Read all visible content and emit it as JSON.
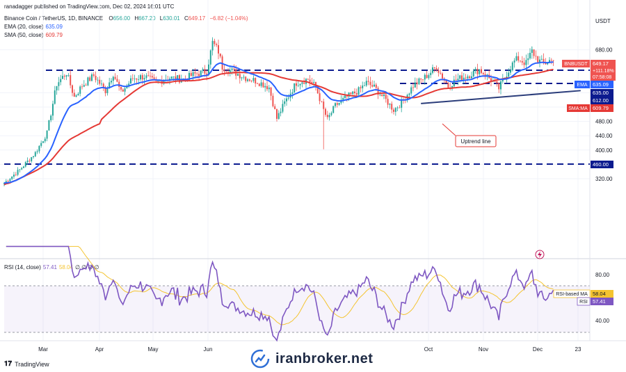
{
  "header": {
    "author_line": "ranadagger published on TradingView.com, Dec 02, 2024 16:01 UTC",
    "symbol": "Binance Coin / TetherUS, 1D, BINANCE",
    "o_label": "O",
    "o_value": "656.00",
    "h_label": "H",
    "h_value": "667.20",
    "l_label": "L",
    "l_value": "630.01",
    "c_label": "C",
    "c_value": "649.17",
    "change": "−6.82 (−1.04%)",
    "ema_legend": "EMA (20, close)",
    "ema_value": "635.09",
    "sma_legend": "SMA (50, close)",
    "sma_value": "609.79"
  },
  "currency": "USDT",
  "badges": {
    "symbol_tag": "BNBUSDT",
    "price": "649.17",
    "pct": "+111.18%",
    "countdown": "07:58:08",
    "ema_tag": "EMA",
    "ema_value": "635.09",
    "level_635": "635.00",
    "level_612": "612.00",
    "sma_tag": "SMA:MA",
    "sma_value": "609.79",
    "level_460": "460.00"
  },
  "annotation": "Uptrend line",
  "rsi": {
    "legend": "RSI (14, close)",
    "value": "57.41",
    "ma_value": "58.04",
    "zeros": "∅ ∅ ∅ ∅",
    "ma_tag": "RSI-based MA",
    "rsi_tag": "RSI",
    "ticks": [
      "80.00",
      "40.00"
    ]
  },
  "watermark": "iranbroker.net",
  "tv_logo": "TradingView",
  "colors": {
    "up": "#26a69a",
    "down": "#ef5350",
    "ema": "#2962ff",
    "sma": "#e53935",
    "rsi": "#7e57c2",
    "rsi_ma": "#f4c430",
    "trendline": "#2a3c7a",
    "level": "#0c1b8f"
  },
  "chart_data": [
    {
      "type": "candlestick",
      "yscale": "linear",
      "ylim": [
        295,
        705
      ],
      "yticks": [
        "680.00",
        "560.00",
        "520.00",
        "480.00",
        "440.00",
        "400.00",
        "360.00",
        "320.00"
      ],
      "xlabels": [
        "Mar",
        "Apr",
        "May",
        "Jun",
        "Oct",
        "Nov",
        "Dec",
        "23"
      ],
      "horizontal_levels": [
        635,
        612,
        460
      ],
      "series": [
        {
          "name": "EMA (20, close)",
          "last": 635.09
        },
        {
          "name": "SMA (50, close)",
          "last": 609.79
        }
      ],
      "waypoints": [
        [
          0,
          308
        ],
        [
          8,
          345
        ],
        [
          16,
          392
        ],
        [
          22,
          448
        ],
        [
          27,
          585
        ],
        [
          32,
          616
        ],
        [
          36,
          548
        ],
        [
          40,
          580
        ],
        [
          46,
          608
        ],
        [
          52,
          566
        ],
        [
          56,
          614
        ],
        [
          60,
          560
        ],
        [
          66,
          600
        ],
        [
          72,
          606
        ],
        [
          78,
          588
        ],
        [
          84,
          602
        ],
        [
          92,
          598
        ],
        [
          98,
          612
        ],
        [
          104,
          620
        ],
        [
          107,
          700
        ],
        [
          110,
          676
        ],
        [
          112,
          632
        ],
        [
          118,
          618
        ],
        [
          124,
          602
        ],
        [
          130,
          592
        ],
        [
          136,
          575
        ],
        [
          140,
          488
        ],
        [
          144,
          532
        ],
        [
          150,
          588
        ],
        [
          156,
          598
        ],
        [
          160,
          576
        ],
        [
          164,
          512
        ],
        [
          166,
          485
        ],
        [
          170,
          524
        ],
        [
          176,
          548
        ],
        [
          182,
          566
        ],
        [
          186,
          588
        ],
        [
          190,
          575
        ],
        [
          196,
          540
        ],
        [
          200,
          512
        ],
        [
          204,
          532
        ],
        [
          210,
          580
        ],
        [
          216,
          603
        ],
        [
          222,
          632
        ],
        [
          228,
          578
        ],
        [
          232,
          596
        ],
        [
          238,
          608
        ],
        [
          244,
          625
        ],
        [
          250,
          596
        ],
        [
          254,
          572
        ],
        [
          258,
          614
        ],
        [
          262,
          648
        ],
        [
          264,
          655
        ],
        [
          268,
          642
        ],
        [
          271,
          676
        ],
        [
          274,
          652
        ],
        [
          277,
          640
        ],
        [
          280,
          650
        ],
        [
          282,
          649
        ]
      ],
      "uptrend_line": [
        [
          214,
          530
        ],
        [
          296,
          566
        ]
      ]
    },
    {
      "type": "line",
      "name": "RSI (14, close)",
      "ylim": [
        20,
        90
      ],
      "yticks": [
        "80.00",
        "40.00"
      ],
      "bands": [
        70,
        30
      ],
      "last": 57.41,
      "ma_last": 58.04
    }
  ]
}
